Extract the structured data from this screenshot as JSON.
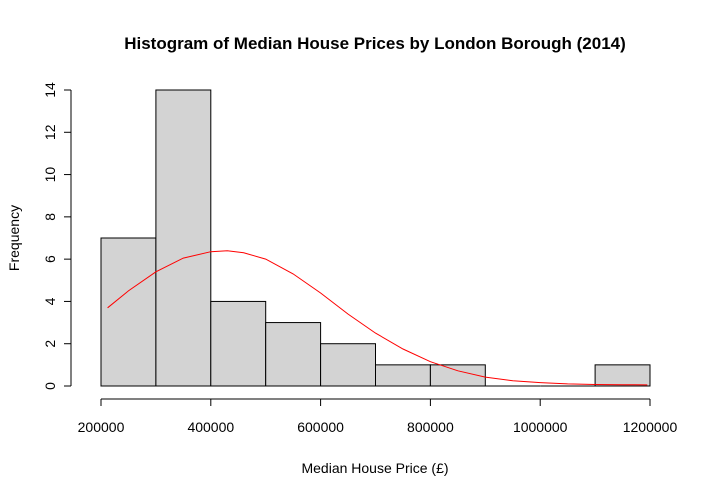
{
  "chart_data": {
    "type": "bar",
    "title": "Histogram of Median House Prices by London Borough (2014)",
    "xlabel": "Median House Price (£)",
    "ylabel": "Frequency",
    "bins": [
      {
        "start": 200000,
        "end": 300000,
        "count": 7
      },
      {
        "start": 300000,
        "end": 400000,
        "count": 14
      },
      {
        "start": 400000,
        "end": 500000,
        "count": 4
      },
      {
        "start": 500000,
        "end": 600000,
        "count": 3
      },
      {
        "start": 600000,
        "end": 700000,
        "count": 2
      },
      {
        "start": 700000,
        "end": 800000,
        "count": 1
      },
      {
        "start": 800000,
        "end": 900000,
        "count": 1
      },
      {
        "start": 900000,
        "end": 1000000,
        "count": 0
      },
      {
        "start": 1000000,
        "end": 1100000,
        "count": 0
      },
      {
        "start": 1100000,
        "end": 1200000,
        "count": 1
      }
    ],
    "x_ticks": [
      "200000",
      "400000",
      "600000",
      "800000",
      "1000000",
      "1200000"
    ],
    "y_ticks": [
      "0",
      "2",
      "4",
      "6",
      "8",
      "10",
      "12",
      "14"
    ],
    "xlim": [
      200000,
      1200000
    ],
    "ylim": [
      0,
      14
    ],
    "grid": false,
    "bar_color": "#d3d3d3",
    "curve_color": "#ff0000",
    "density_curve": {
      "x": [
        212000,
        250000,
        300000,
        350000,
        400000,
        430000,
        460000,
        500000,
        550000,
        600000,
        650000,
        700000,
        750000,
        800000,
        850000,
        900000,
        950000,
        1000000,
        1050000,
        1100000,
        1150000,
        1195000
      ],
      "y": [
        3.7,
        4.5,
        5.4,
        6.05,
        6.35,
        6.4,
        6.3,
        6.0,
        5.3,
        4.4,
        3.4,
        2.5,
        1.75,
        1.15,
        0.72,
        0.42,
        0.25,
        0.16,
        0.1,
        0.07,
        0.06,
        0.05
      ]
    }
  }
}
